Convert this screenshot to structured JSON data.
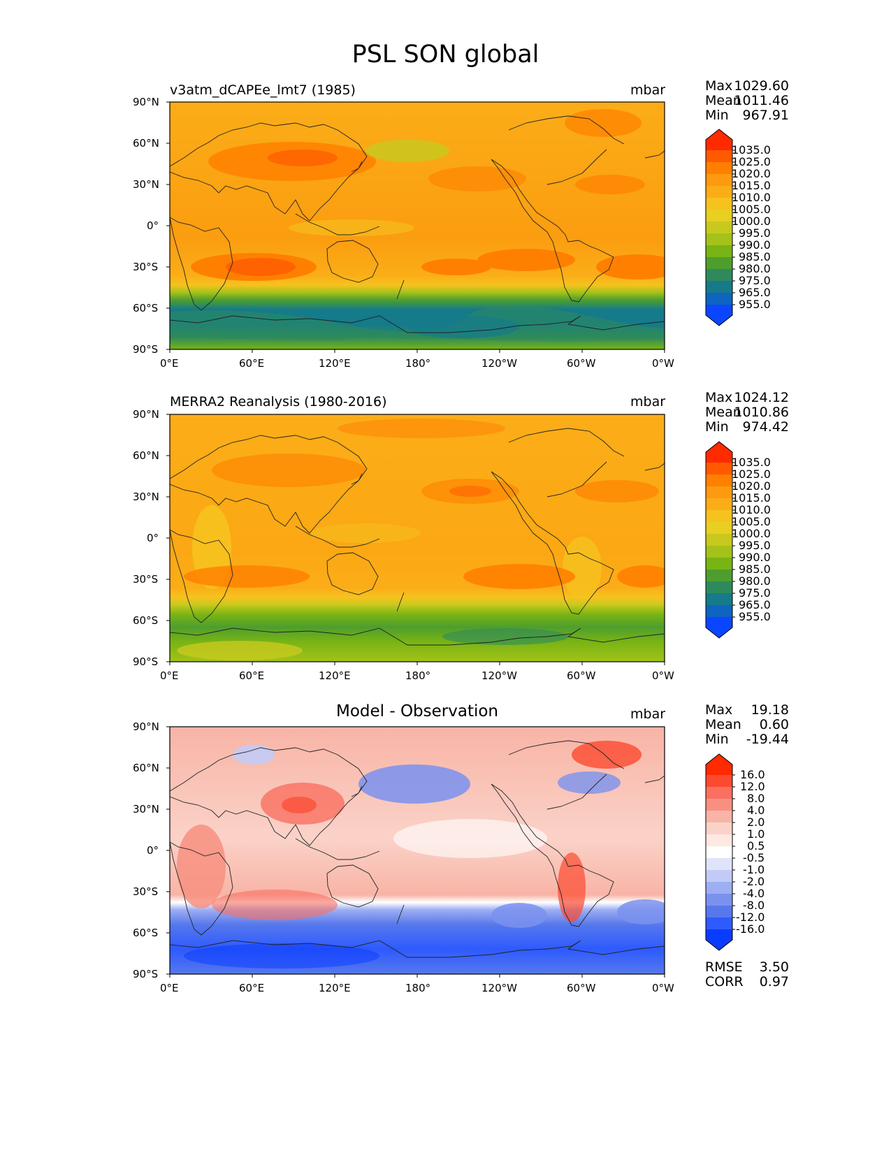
{
  "figure_title": "PSL SON global",
  "lat_ticks": [
    "90°N",
    "60°N",
    "30°N",
    "0°",
    "30°S",
    "60°S",
    "90°S"
  ],
  "lon_ticks": [
    "0°E",
    "60°E",
    "120°E",
    "180°",
    "120°W",
    "60°W",
    "0°W"
  ],
  "panels": [
    {
      "title": "v3atm_dCAPEe_lmt7 (1985)",
      "unit": "mbar",
      "stats": [
        {
          "label": "Max",
          "value": "1029.60"
        },
        {
          "label": "Mean",
          "value": "1011.46"
        },
        {
          "label": "Min",
          "value": "967.91"
        }
      ],
      "colorbar_levels": [
        "1035.0",
        "1025.0",
        "1020.0",
        "1015.0",
        "1010.0",
        "1005.0",
        "1000.0",
        "995.0",
        "990.0",
        "985.0",
        "980.0",
        "975.0",
        "965.0",
        "955.0"
      ]
    },
    {
      "title": "MERRA2 Reanalysis (1980-2016)",
      "unit": "mbar",
      "stats": [
        {
          "label": "Max",
          "value": "1024.12"
        },
        {
          "label": "Mean",
          "value": "1010.86"
        },
        {
          "label": "Min",
          "value": "974.42"
        }
      ],
      "colorbar_levels": [
        "1035.0",
        "1025.0",
        "1020.0",
        "1015.0",
        "1010.0",
        "1005.0",
        "1000.0",
        "995.0",
        "990.0",
        "985.0",
        "980.0",
        "975.0",
        "965.0",
        "955.0"
      ]
    },
    {
      "title": "Model - Observation",
      "unit": "mbar",
      "stats": [
        {
          "label": "Max",
          "value": "19.18"
        },
        {
          "label": "Mean",
          "value": "0.60"
        },
        {
          "label": "Min",
          "value": "-19.44"
        }
      ],
      "colorbar_levels": [
        "16.0",
        "12.0",
        "8.0",
        "4.0",
        "2.0",
        "1.0",
        "0.5",
        "-0.5",
        "-1.0",
        "-2.0",
        "-4.0",
        "-8.0",
        "-12.0",
        "-16.0"
      ],
      "extra_stats": [
        {
          "label": "RMSE",
          "value": "3.50"
        },
        {
          "label": "CORR",
          "value": "0.97"
        }
      ]
    }
  ],
  "colors": {
    "field_scale": [
      "#ff2a00",
      "#ff5a00",
      "#ff8000",
      "#fd9a10",
      "#fbad18",
      "#f6c21e",
      "#e9cf22",
      "#c8c91e",
      "#a4c21a",
      "#78b414",
      "#4e9e2e",
      "#2e8a5c",
      "#157a8a",
      "#0e64c0",
      "#0a46ff"
    ],
    "diff_scale": [
      "#ff2a00",
      "#fc4a30",
      "#f97060",
      "#f79080",
      "#f8b4a6",
      "#fbd2c8",
      "#fde8e2",
      "#ffffff",
      "#e0e4fa",
      "#c2cbf6",
      "#9eaef2",
      "#7a92ee",
      "#5678ec",
      "#2e5afe",
      "#0a3cfe"
    ]
  }
}
